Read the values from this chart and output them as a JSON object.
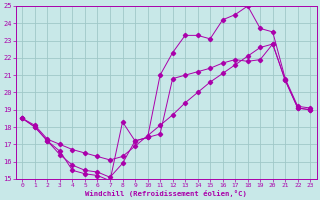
{
  "bg_color": "#c8e8e8",
  "grid_color": "#a0c8c8",
  "line_color": "#aa00aa",
  "xlim": [
    -0.5,
    23.5
  ],
  "ylim": [
    15,
    25
  ],
  "x_ticks": [
    0,
    1,
    2,
    3,
    4,
    5,
    6,
    7,
    8,
    9,
    10,
    11,
    12,
    13,
    14,
    15,
    16,
    17,
    18,
    19,
    20,
    21,
    22,
    23
  ],
  "y_ticks": [
    15,
    16,
    17,
    18,
    19,
    20,
    21,
    22,
    23,
    24,
    25
  ],
  "xlabel": "Windchill (Refroidissement éolien,°C)",
  "line1_x": [
    0,
    1,
    2,
    3,
    4,
    5,
    6,
    7,
    8,
    9,
    10,
    11,
    12,
    13,
    14,
    15,
    16,
    17,
    18,
    19,
    20,
    21,
    22,
    23
  ],
  "line1_y": [
    18.5,
    18.0,
    17.2,
    16.6,
    15.5,
    15.3,
    15.2,
    14.9,
    18.3,
    17.2,
    17.4,
    21.0,
    22.3,
    23.3,
    23.3,
    23.1,
    24.2,
    24.5,
    25.0,
    23.7,
    23.5,
    20.8,
    19.2,
    19.1
  ],
  "line2_x": [
    0,
    1,
    2,
    3,
    4,
    5,
    6,
    7,
    8,
    9,
    10,
    11,
    12,
    13,
    14,
    15,
    16,
    17,
    18,
    19,
    20,
    21,
    22,
    23
  ],
  "line2_y": [
    18.5,
    18.0,
    17.2,
    16.4,
    15.8,
    15.5,
    15.4,
    15.1,
    15.9,
    17.2,
    17.4,
    17.6,
    20.8,
    21.0,
    21.2,
    21.4,
    21.7,
    21.9,
    21.8,
    21.9,
    22.8,
    20.7,
    19.1,
    19.0
  ],
  "line3_x": [
    0,
    1,
    2,
    3,
    4,
    5,
    6,
    7,
    8,
    9,
    10,
    11,
    12,
    13,
    14,
    15,
    16,
    17,
    18,
    19,
    20,
    21,
    22,
    23
  ],
  "line3_y": [
    18.5,
    18.1,
    17.3,
    17.0,
    16.7,
    16.5,
    16.3,
    16.1,
    16.3,
    16.9,
    17.5,
    18.1,
    18.7,
    19.4,
    20.0,
    20.6,
    21.1,
    21.6,
    22.1,
    22.6,
    22.8,
    20.7,
    19.1,
    19.0
  ]
}
